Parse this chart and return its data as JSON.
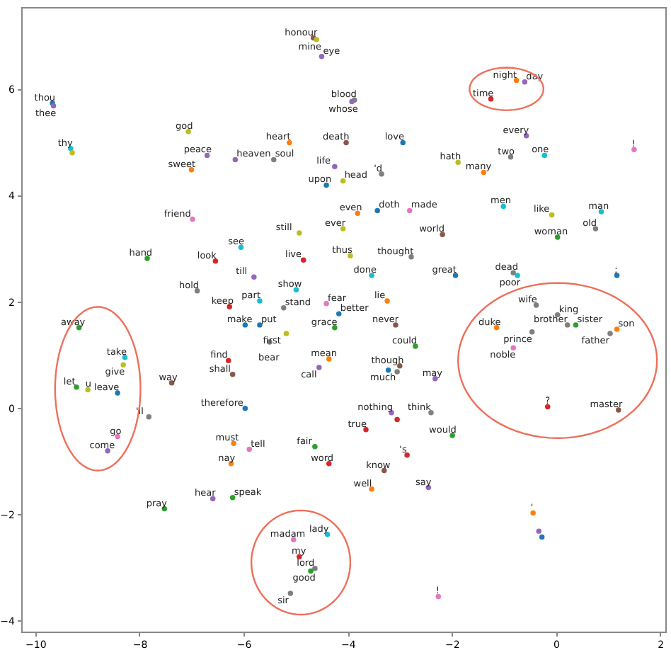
{
  "chart_data": {
    "type": "scatter",
    "marker": "circle",
    "grid": false,
    "xlim": [
      -10.27,
      2.1
    ],
    "ylim": [
      -4.2,
      7.55
    ],
    "xticks": [
      -10,
      -8,
      -6,
      -4,
      -2,
      0,
      2
    ],
    "yticks": [
      -4,
      -2,
      0,
      2,
      4,
      6
    ],
    "x": [
      -4.66,
      -4.6,
      -4.5,
      -3.87,
      -3.92,
      -9.67,
      -9.65,
      -9.32,
      -9.29,
      -7.06,
      -6.7,
      -6.16,
      -7.0,
      -6.98,
      -7.85,
      -6.54,
      -6.89,
      -6.27,
      -5.12,
      -4.03,
      -5.42,
      -2.94,
      -4.25,
      -4.41,
      -4.09,
      -3.35,
      -3.81,
      -3.43,
      -2.81,
      -4.09,
      -4.93,
      -6.05,
      -4.85,
      -3.95,
      -2.78,
      -2.18,
      -3.54,
      -1.93,
      -5.8,
      -4.99,
      -5.69,
      -5.23,
      -4.41,
      -4.17,
      -3.24,
      -4.25,
      -3.08,
      -5.97,
      -5.69,
      -5.18,
      -5.5,
      -4.36,
      -4.55,
      -2.7,
      -3.0,
      -3.22,
      -3.05,
      -2.32,
      -6.29,
      -6.21,
      -7.38,
      -7.82,
      -5.97,
      -3.16,
      -3.05,
      -2.4,
      -3.65,
      -1.99,
      -6.19,
      -5.89,
      -6.24,
      -4.63,
      -4.36,
      -2.86,
      -3.3,
      -3.54,
      -2.45,
      -6.59,
      -6.21,
      -7.52,
      -5.04,
      -4.39,
      -4.93,
      -4.63,
      -4.71,
      -5.1,
      -2.26,
      -0.76,
      -0.6,
      -1.25,
      -0.57,
      -0.87,
      -0.22,
      -1.88,
      -1.39,
      1.5,
      -1.01,
      -0.08,
      0.87,
      0.76,
      0.03,
      -0.82,
      -0.74,
      1.17,
      -0.38,
      0.03,
      0.22,
      0.38,
      1.17,
      1.04,
      -1.14,
      -0.46,
      -0.82,
      -0.16,
      1.2,
      -0.44,
      -0.33,
      -0.27,
      -9.16,
      -8.28,
      -8.31,
      -9.21,
      -8.99,
      -8.42,
      -8.42,
      -8.61
    ],
    "values": [
      6.97,
      6.94,
      6.62,
      5.8,
      5.77,
      5.74,
      5.69,
      4.89,
      4.81,
      5.21,
      4.76,
      4.68,
      4.49,
      3.56,
      2.82,
      2.77,
      2.21,
      1.91,
      5.0,
      5.0,
      4.68,
      5.0,
      4.55,
      4.2,
      4.28,
      4.41,
      3.67,
      3.72,
      3.72,
      3.38,
      3.3,
      3.03,
      2.79,
      2.87,
      2.85,
      3.27,
      2.5,
      2.5,
      2.47,
      2.23,
      2.02,
      1.89,
      1.97,
      1.78,
      2.02,
      1.52,
      1.57,
      1.57,
      1.57,
      1.41,
      1.25,
      0.93,
      0.77,
      1.17,
      0.8,
      0.72,
      0.69,
      0.56,
      0.9,
      0.64,
      0.48,
      -0.16,
      0.0,
      -0.08,
      -0.21,
      -0.08,
      -0.4,
      -0.51,
      -0.66,
      -0.77,
      -1.04,
      -0.72,
      -1.04,
      -0.88,
      -1.17,
      -1.52,
      -1.49,
      -1.7,
      -1.68,
      -1.89,
      -2.47,
      -2.37,
      -2.79,
      -3.01,
      -3.06,
      -3.48,
      -3.54,
      6.17,
      6.14,
      5.82,
      5.13,
      4.73,
      4.76,
      4.63,
      4.44,
      4.87,
      3.8,
      3.64,
      3.7,
      3.38,
      3.22,
      2.55,
      2.5,
      2.5,
      1.94,
      1.76,
      1.57,
      1.57,
      1.49,
      1.41,
      1.52,
      1.44,
      1.14,
      0.03,
      -0.03,
      -1.97,
      -2.31,
      -2.42,
      1.52,
      0.96,
      0.82,
      0.4,
      0.35,
      0.29,
      -0.53,
      -0.8
    ],
    "colors": [
      "#8c564b",
      "#bcbd22",
      "#9467bd",
      "#7f7f7f",
      "#9467bd",
      "#1f77b4",
      "#9467bd",
      "#17becf",
      "#bcbd22",
      "#bcbd22",
      "#9467bd",
      "#9467bd",
      "#ff7f0e",
      "#e377c2",
      "#2ca02c",
      "#d62728",
      "#7f7f7f",
      "#d62728",
      "#ff7f0e",
      "#8c564b",
      "#7f7f7f",
      "#1f77b4",
      "#9467bd",
      "#1f77b4",
      "#bcbd22",
      "#7f7f7f",
      "#ff7f0e",
      "#1f77b4",
      "#e377c2",
      "#bcbd22",
      "#bcbd22",
      "#17becf",
      "#d62728",
      "#bcbd22",
      "#7f7f7f",
      "#8c564b",
      "#17becf",
      "#1f77b4",
      "#9467bd",
      "#17becf",
      "#17becf",
      "#7f7f7f",
      "#e377c2",
      "#1f77b4",
      "#ff7f0e",
      "#2ca02c",
      "#8c564b",
      "#1f77b4",
      "#1f77b4",
      "#bcbd22",
      "#7f7f7f",
      "#ff7f0e",
      "#9467bd",
      "#2ca02c",
      "#8c564b",
      "#1f77b4",
      "#7f7f7f",
      "#9467bd",
      "#d62728",
      "#8c564b",
      "#8c564b",
      "#7f7f7f",
      "#1f77b4",
      "#9467bd",
      "#d62728",
      "#7f7f7f",
      "#d62728",
      "#2ca02c",
      "#ff7f0e",
      "#e377c2",
      "#ff7f0e",
      "#2ca02c",
      "#d62728",
      "#d62728",
      "#8c564b",
      "#ff7f0e",
      "#9467bd",
      "#9467bd",
      "#2ca02c",
      "#2ca02c",
      "#e377c2",
      "#17becf",
      "#d62728",
      "#7f7f7f",
      "#2ca02c",
      "#7f7f7f",
      "#e377c2",
      "#ff7f0e",
      "#9467bd",
      "#d62728",
      "#9467bd",
      "#7f7f7f",
      "#17becf",
      "#bcbd22",
      "#ff7f0e",
      "#e377c2",
      "#17becf",
      "#bcbd22",
      "#17becf",
      "#7f7f7f",
      "#2ca02c",
      "#7f7f7f",
      "#17becf",
      "#1f77b4",
      "#7f7f7f",
      "#7f7f7f",
      "#7f7f7f",
      "#2ca02c",
      "#ff7f0e",
      "#7f7f7f",
      "#ff7f0e",
      "#7f7f7f",
      "#e377c2",
      "#d62728",
      "#8c564b",
      "#ff7f0e",
      "#9467bd",
      "#1f77b4",
      "#2ca02c",
      "#17becf",
      "#bcbd22",
      "#2ca02c",
      "#bcbd22",
      "#1f77b4",
      "#e377c2",
      "#9467bd"
    ],
    "annotations": [
      {
        "text": "honour",
        "x": -4.66,
        "y": 6.97
      },
      {
        "text": "mine",
        "x": -4.6,
        "y": 6.94
      },
      {
        "text": "eye",
        "x": -4.5,
        "y": 6.62
      },
      {
        "text": "blood",
        "x": -3.87,
        "y": 5.8
      },
      {
        "text": "whose",
        "x": -3.92,
        "y": 5.77
      },
      {
        "text": "thou",
        "x": -9.67,
        "y": 5.74
      },
      {
        "text": "thee",
        "x": -9.65,
        "y": 5.69
      },
      {
        "text": "thy",
        "x": -9.32,
        "y": 4.89
      },
      {
        "text": "god",
        "x": -7.06,
        "y": 5.21
      },
      {
        "text": "peace",
        "x": -6.7,
        "y": 4.76
      },
      {
        "text": "heaven",
        "x": -6.16,
        "y": 4.68
      },
      {
        "text": "sweet",
        "x": -7.0,
        "y": 4.49
      },
      {
        "text": "friend",
        "x": -6.98,
        "y": 3.56
      },
      {
        "text": "hand",
        "x": -7.85,
        "y": 2.82
      },
      {
        "text": "look",
        "x": -6.54,
        "y": 2.77
      },
      {
        "text": "hold",
        "x": -6.89,
        "y": 2.21
      },
      {
        "text": "keep",
        "x": -6.27,
        "y": 1.91
      },
      {
        "text": "heart",
        "x": -5.12,
        "y": 5.0
      },
      {
        "text": "death",
        "x": -4.03,
        "y": 5.0
      },
      {
        "text": "soul",
        "x": -5.42,
        "y": 4.68
      },
      {
        "text": "love",
        "x": -2.94,
        "y": 5.0
      },
      {
        "text": "life",
        "x": -4.25,
        "y": 4.55
      },
      {
        "text": "upon",
        "x": -4.41,
        "y": 4.2
      },
      {
        "text": "head",
        "x": -4.09,
        "y": 4.28
      },
      {
        "text": "'d",
        "x": -3.35,
        "y": 4.41
      },
      {
        "text": "even",
        "x": -3.81,
        "y": 3.67
      },
      {
        "text": "doth",
        "x": -3.43,
        "y": 3.72
      },
      {
        "text": "made",
        "x": -2.81,
        "y": 3.72
      },
      {
        "text": "ever",
        "x": -4.09,
        "y": 3.38
      },
      {
        "text": "still",
        "x": -4.93,
        "y": 3.3
      },
      {
        "text": "see",
        "x": -6.05,
        "y": 3.03
      },
      {
        "text": "live",
        "x": -4.85,
        "y": 2.79
      },
      {
        "text": "thus",
        "x": -3.95,
        "y": 2.87
      },
      {
        "text": "thought",
        "x": -2.78,
        "y": 2.85
      },
      {
        "text": "world",
        "x": -2.18,
        "y": 3.27
      },
      {
        "text": "done",
        "x": -3.54,
        "y": 2.5
      },
      {
        "text": "great",
        "x": -1.93,
        "y": 2.5
      },
      {
        "text": "till",
        "x": -5.8,
        "y": 2.47
      },
      {
        "text": "show",
        "x": -4.99,
        "y": 2.23
      },
      {
        "text": "part",
        "x": -5.69,
        "y": 2.02
      },
      {
        "text": "stand",
        "x": -5.23,
        "y": 1.89
      },
      {
        "text": "fear",
        "x": -4.41,
        "y": 1.97
      },
      {
        "text": "better",
        "x": -4.17,
        "y": 1.78
      },
      {
        "text": "lie",
        "x": -3.24,
        "y": 2.02
      },
      {
        "text": "grace",
        "x": -4.25,
        "y": 1.52
      },
      {
        "text": "never",
        "x": -3.08,
        "y": 1.57
      },
      {
        "text": "make",
        "x": -5.97,
        "y": 1.57
      },
      {
        "text": "put",
        "x": -5.69,
        "y": 1.57
      },
      {
        "text": "first",
        "x": -5.18,
        "y": 1.41
      },
      {
        "text": "bear",
        "x": -5.5,
        "y": 1.25
      },
      {
        "text": "mean",
        "x": -4.36,
        "y": 0.93
      },
      {
        "text": "call",
        "x": -4.55,
        "y": 0.77
      },
      {
        "text": "could",
        "x": -2.7,
        "y": 1.17
      },
      {
        "text": "though",
        "x": -3.0,
        "y": 0.8
      },
      {
        "text": "much",
        "x": -3.22,
        "y": 0.72
      },
      {
        "text": "may",
        "x": -2.32,
        "y": 0.56
      },
      {
        "text": "find",
        "x": -6.29,
        "y": 0.9
      },
      {
        "text": "shall",
        "x": -6.21,
        "y": 0.64
      },
      {
        "text": "way",
        "x": -7.38,
        "y": 0.48
      },
      {
        "text": "'ll",
        "x": -7.82,
        "y": -0.16
      },
      {
        "text": "therefore",
        "x": -5.97,
        "y": 0.0
      },
      {
        "text": "nothing",
        "x": -3.16,
        "y": -0.08
      },
      {
        "text": "think",
        "x": -2.4,
        "y": -0.08
      },
      {
        "text": "true",
        "x": -3.65,
        "y": -0.4
      },
      {
        "text": "would",
        "x": -1.99,
        "y": -0.51
      },
      {
        "text": "must",
        "x": -6.19,
        "y": -0.66
      },
      {
        "text": "tell",
        "x": -5.89,
        "y": -0.77
      },
      {
        "text": "nay",
        "x": -6.24,
        "y": -1.04
      },
      {
        "text": "fair",
        "x": -4.63,
        "y": -0.72
      },
      {
        "text": "word",
        "x": -4.36,
        "y": -1.04
      },
      {
        "text": "'s",
        "x": -2.86,
        "y": -0.88
      },
      {
        "text": "know",
        "x": -3.3,
        "y": -1.17
      },
      {
        "text": "well",
        "x": -3.54,
        "y": -1.52
      },
      {
        "text": "say",
        "x": -2.45,
        "y": -1.49
      },
      {
        "text": "hear",
        "x": -6.59,
        "y": -1.7
      },
      {
        "text": "speak",
        "x": -6.21,
        "y": -1.68
      },
      {
        "text": "pray",
        "x": -7.52,
        "y": -1.89
      },
      {
        "text": "madam",
        "x": -5.04,
        "y": -2.47
      },
      {
        "text": "lady",
        "x": -4.39,
        "y": -2.37
      },
      {
        "text": "my",
        "x": -4.93,
        "y": -2.79
      },
      {
        "text": "lord",
        "x": -4.63,
        "y": -3.01
      },
      {
        "text": "good",
        "x": -4.71,
        "y": -3.06
      },
      {
        "text": "sir",
        "x": -5.1,
        "y": -3.48
      },
      {
        "text": "!",
        "x": -2.26,
        "y": -3.54
      },
      {
        "text": "night",
        "x": -0.76,
        "y": 6.17
      },
      {
        "text": "day",
        "x": -0.6,
        "y": 6.14
      },
      {
        "text": "time",
        "x": -1.25,
        "y": 5.82
      },
      {
        "text": "every",
        "x": -0.57,
        "y": 5.13
      },
      {
        "text": "two",
        "x": -0.87,
        "y": 4.73
      },
      {
        "text": "one",
        "x": -0.22,
        "y": 4.76
      },
      {
        "text": "hath",
        "x": -1.88,
        "y": 4.63
      },
      {
        "text": "many",
        "x": -1.39,
        "y": 4.44
      },
      {
        "text": "!",
        "x": 1.5,
        "y": 4.87
      },
      {
        "text": "men",
        "x": -1.01,
        "y": 3.8
      },
      {
        "text": "like",
        "x": -0.08,
        "y": 3.64
      },
      {
        "text": "man",
        "x": 0.87,
        "y": 3.7
      },
      {
        "text": "old",
        "x": 0.76,
        "y": 3.38
      },
      {
        "text": "woman",
        "x": 0.03,
        "y": 3.22
      },
      {
        "text": "dead",
        "x": -0.82,
        "y": 2.55
      },
      {
        "text": "poor",
        "x": -0.74,
        "y": 2.5
      },
      {
        "text": ";",
        "x": 1.17,
        "y": 2.5
      },
      {
        "text": "wife",
        "x": -0.38,
        "y": 1.94
      },
      {
        "text": "king",
        "x": 0.03,
        "y": 1.76
      },
      {
        "text": "brother",
        "x": 0.22,
        "y": 1.57
      },
      {
        "text": "sister",
        "x": 0.38,
        "y": 1.57
      },
      {
        "text": "son",
        "x": 1.17,
        "y": 1.49
      },
      {
        "text": "father",
        "x": 1.04,
        "y": 1.41
      },
      {
        "text": "duke",
        "x": -1.14,
        "y": 1.52
      },
      {
        "text": "prince",
        "x": -0.46,
        "y": 1.44
      },
      {
        "text": "noble",
        "x": -0.82,
        "y": 1.14
      },
      {
        "text": "?",
        "x": -0.16,
        "y": 0.03
      },
      {
        "text": "master",
        "x": 1.2,
        "y": -0.03
      },
      {
        "text": "'",
        "x": -0.44,
        "y": -1.97
      },
      {
        "text": "away",
        "x": -9.16,
        "y": 1.52
      },
      {
        "text": "take",
        "x": -8.28,
        "y": 0.96
      },
      {
        "text": "give",
        "x": -8.31,
        "y": 0.82
      },
      {
        "text": "let",
        "x": -9.21,
        "y": 0.4
      },
      {
        "text": "u",
        "x": -8.99,
        "y": 0.35
      },
      {
        "text": "leave",
        "x": -8.42,
        "y": 0.29
      },
      {
        "text": "go",
        "x": -8.42,
        "y": -0.53
      },
      {
        "text": "come",
        "x": -8.61,
        "y": -0.8
      }
    ]
  }
}
